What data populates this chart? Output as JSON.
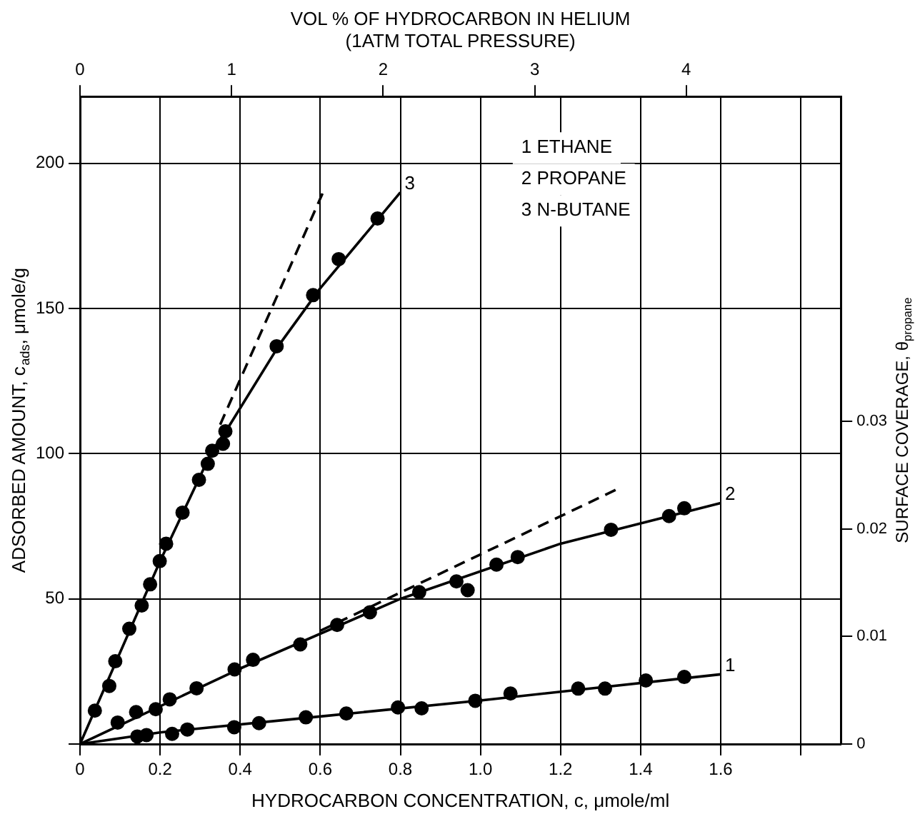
{
  "chart_data": {
    "type": "scatter",
    "xlabel": "HYDROCARBON CONCENTRATION, c, μmole/ml",
    "ylabel": "ADSORBED AMOUNT, c$_{ads}$, μmole/g",
    "y2label": "SURFACE COVERAGE, θ$_{propane}$",
    "x2label": "VOL % OF HYDROCARBON IN HELIUM\n(1ATM TOTAL PRESSURE)",
    "xlim": [
      0,
      1.9
    ],
    "xticks": [
      0,
      0.2,
      0.4,
      0.6,
      0.8,
      {
        "value": 1.0,
        "label": "1.0"
      },
      1.2,
      1.4,
      1.6,
      {
        "value": 1.8,
        "label": null
      }
    ],
    "ylim": [
      0,
      223
    ],
    "yticks": [
      {
        "value": 0,
        "label": null
      },
      50,
      100,
      150,
      200
    ],
    "x2lim": [
      0,
      5.02
    ],
    "x2ticks": [
      0,
      1,
      2,
      3,
      4
    ],
    "y2lim": [
      0,
      0.0602
    ],
    "y2ticks": [
      0,
      0.01,
      0.02,
      0.03
    ],
    "grid": true,
    "series": [
      {
        "color": "#000000",
        "marker": "circle",
        "x": [
          0.143,
          0.166,
          0.23,
          0.268,
          0.385,
          0.447,
          0.564,
          0.665,
          0.794,
          0.853,
          0.987,
          1.075,
          1.244,
          1.311,
          1.413,
          1.509
        ],
        "values": [
          2.6,
          3.1,
          3.5,
          5,
          5.8,
          7.2,
          9.2,
          10.5,
          12.6,
          12.3,
          14.9,
          17.4,
          19.1,
          19.1,
          21.9,
          23.1
        ]
      },
      {
        "color": "#000000",
        "marker": "circle",
        "x": [
          0.094,
          0.14,
          0.189,
          0.224,
          0.291,
          0.386,
          0.432,
          0.55,
          0.642,
          0.724,
          0.847,
          0.94,
          0.968,
          1.04,
          1.093,
          1.326,
          1.471,
          1.509
        ],
        "values": [
          7.4,
          11,
          12,
          15.4,
          19.2,
          25.7,
          29,
          34.3,
          41,
          45.4,
          52.3,
          56,
          53,
          61.8,
          64.4,
          73.8,
          78.5,
          81.2
        ]
      },
      {
        "color": "#000000",
        "marker": "circle",
        "x": [
          0.037,
          0.073,
          0.088,
          0.123,
          0.154,
          0.175,
          0.199,
          0.215,
          0.256,
          0.297,
          0.319,
          0.33,
          0.357,
          0.363,
          0.491,
          0.582,
          0.646,
          0.743
        ],
        "values": [
          11.5,
          20,
          28.5,
          39.7,
          47.7,
          55,
          63,
          69,
          79.7,
          91,
          96.5,
          101,
          103.4,
          107.7,
          137,
          154.6,
          167,
          181
        ]
      },
      {
        "type": "line",
        "name": "1",
        "color": "#000000",
        "marker": "none",
        "line_style": "solid",
        "x": [
          0,
          0.2,
          0.6,
          1.0,
          1.6
        ],
        "values": [
          0,
          4,
          9.5,
          15,
          24
        ]
      },
      {
        "type": "line",
        "name": "2",
        "color": "#000000",
        "marker": "none",
        "line_style": "solid",
        "x": [
          0,
          0.4,
          0.8,
          1.2,
          1.6
        ],
        "values": [
          0,
          26,
          50,
          69,
          83
        ]
      },
      {
        "type": "line",
        "name": "3",
        "color": "#000000",
        "marker": "none",
        "line_style": "solid",
        "x": [
          0,
          0.2,
          0.33,
          0.37,
          0.5,
          0.6,
          0.8
        ],
        "values": [
          0,
          63,
          101,
          109,
          138,
          157,
          190
        ]
      },
      {
        "type": "line",
        "color": "#000000",
        "marker": "none",
        "line_style": "dashed",
        "x": [
          0.6,
          1.345
        ],
        "values": [
          39,
          88
        ]
      },
      {
        "type": "line",
        "color": "#000000",
        "marker": "none",
        "line_style": "dashed",
        "x": [
          0.35,
          0.61
        ],
        "values": [
          110,
          191
        ]
      }
    ],
    "annotations": [
      "1 ETHANE",
      "2 PROPANE",
      "3 N-BUTANE"
    ]
  }
}
